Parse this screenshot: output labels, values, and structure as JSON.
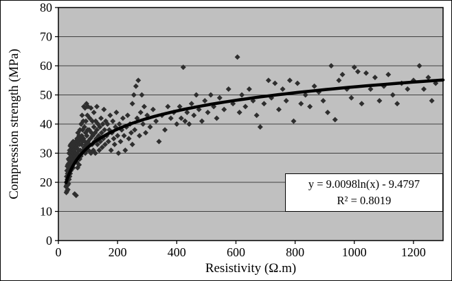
{
  "chart_data": {
    "type": "scatter",
    "title": "",
    "xlabel": "Resistivity (Ω.m)",
    "ylabel": "Compression strength (MPa)",
    "xlim": [
      0,
      1300
    ],
    "ylim": [
      0,
      80
    ],
    "x_ticks": [
      0,
      200,
      400,
      600,
      800,
      1000,
      1200
    ],
    "y_ticks": [
      0,
      10,
      20,
      30,
      40,
      50,
      60,
      70,
      80
    ],
    "grid": "horizontal",
    "plot_bg": "#c0c0c0",
    "grid_color": "#3f3f3f",
    "marker": {
      "shape": "diamond",
      "color": "#2e2e2e",
      "size": 8
    },
    "annotation": {
      "line1": "y = 9.0098ln(x) - 9.4797",
      "line2": "R² = 0.8019"
    },
    "trendline": {
      "type": "logarithmic",
      "a": 9.0098,
      "b": -9.4797,
      "color": "#000000",
      "width": 4.5,
      "x_start": 26,
      "x_end": 1300
    },
    "points": [
      [
        26,
        18.5
      ],
      [
        27,
        20
      ],
      [
        27,
        16.5
      ],
      [
        28,
        22
      ],
      [
        28,
        19
      ],
      [
        29,
        17
      ],
      [
        29,
        24
      ],
      [
        30,
        21
      ],
      [
        30,
        25.5
      ],
      [
        31,
        19
      ],
      [
        31,
        23
      ],
      [
        32,
        17.5
      ],
      [
        32,
        26
      ],
      [
        33,
        21
      ],
      [
        33,
        24.5
      ],
      [
        34,
        19.5
      ],
      [
        34,
        28
      ],
      [
        35,
        23
      ],
      [
        35,
        26.5
      ],
      [
        36,
        21
      ],
      [
        36,
        30
      ],
      [
        37,
        24
      ],
      [
        37,
        27.5
      ],
      [
        38,
        22
      ],
      [
        38,
        31
      ],
      [
        39,
        25
      ],
      [
        39,
        28.5
      ],
      [
        40,
        23
      ],
      [
        40,
        32.5
      ],
      [
        41,
        26
      ],
      [
        41,
        29.5
      ],
      [
        42,
        24
      ],
      [
        42,
        33
      ],
      [
        43,
        27
      ],
      [
        43,
        30.5
      ],
      [
        44,
        25
      ],
      [
        45,
        28
      ],
      [
        45,
        31.5
      ],
      [
        46,
        26
      ],
      [
        46,
        33.5
      ],
      [
        47,
        29
      ],
      [
        48,
        27
      ],
      [
        48,
        32
      ],
      [
        49,
        30
      ],
      [
        50,
        25
      ],
      [
        50,
        34
      ],
      [
        51,
        28
      ],
      [
        52,
        31
      ],
      [
        53,
        26.5
      ],
      [
        54,
        33
      ],
      [
        55,
        16
      ],
      [
        55,
        29
      ],
      [
        56,
        31.5
      ],
      [
        57,
        27
      ],
      [
        58,
        34
      ],
      [
        59,
        30
      ],
      [
        60,
        15.5
      ],
      [
        60,
        28
      ],
      [
        61,
        32
      ],
      [
        62,
        27
      ],
      [
        63,
        35
      ],
      [
        64,
        30
      ],
      [
        65,
        25
      ],
      [
        65,
        33
      ],
      [
        66,
        37
      ],
      [
        67,
        29
      ],
      [
        68,
        34
      ],
      [
        69,
        31
      ],
      [
        70,
        26
      ],
      [
        70,
        36
      ],
      [
        71,
        33
      ],
      [
        72,
        28
      ],
      [
        73,
        38
      ],
      [
        74,
        31
      ],
      [
        75,
        35
      ],
      [
        76,
        29
      ],
      [
        77,
        40
      ],
      [
        78,
        33
      ],
      [
        79,
        36
      ],
      [
        80,
        30
      ],
      [
        80,
        43
      ],
      [
        81,
        34
      ],
      [
        82,
        38
      ],
      [
        83,
        31
      ],
      [
        84,
        41
      ],
      [
        85,
        35
      ],
      [
        86,
        46
      ],
      [
        87,
        32
      ],
      [
        88,
        39
      ],
      [
        89,
        34
      ],
      [
        90,
        45.5
      ],
      [
        91,
        30
      ],
      [
        92,
        37
      ],
      [
        93,
        41
      ],
      [
        94,
        33
      ],
      [
        95,
        47
      ],
      [
        96,
        36
      ],
      [
        97,
        31
      ],
      [
        98,
        43
      ],
      [
        99,
        38
      ],
      [
        100,
        34
      ],
      [
        100,
        46
      ],
      [
        102,
        31
      ],
      [
        104,
        38
      ],
      [
        105,
        33
      ],
      [
        106,
        42
      ],
      [
        108,
        35
      ],
      [
        110,
        30
      ],
      [
        110,
        45.5
      ],
      [
        112,
        37
      ],
      [
        114,
        33
      ],
      [
        115,
        41
      ],
      [
        116,
        36
      ],
      [
        118,
        31
      ],
      [
        120,
        39
      ],
      [
        120,
        44
      ],
      [
        122,
        34
      ],
      [
        124,
        37
      ],
      [
        125,
        30
      ],
      [
        126,
        41
      ],
      [
        128,
        35
      ],
      [
        130,
        38
      ],
      [
        130,
        46
      ],
      [
        132,
        33
      ],
      [
        134,
        40
      ],
      [
        136,
        36
      ],
      [
        138,
        31
      ],
      [
        140,
        39
      ],
      [
        142,
        34
      ],
      [
        144,
        42
      ],
      [
        146,
        37
      ],
      [
        148,
        32
      ],
      [
        150,
        40
      ],
      [
        152,
        35
      ],
      [
        154,
        45
      ],
      [
        156,
        38
      ],
      [
        158,
        33
      ],
      [
        160,
        41
      ],
      [
        163,
        36
      ],
      [
        166,
        40
      ],
      [
        169,
        34
      ],
      [
        172,
        38
      ],
      [
        175,
        43
      ],
      [
        178,
        31
      ],
      [
        181,
        37
      ],
      [
        184,
        41
      ],
      [
        187,
        35
      ],
      [
        190,
        33
      ],
      [
        193,
        39
      ],
      [
        196,
        44
      ],
      [
        200,
        36
      ],
      [
        203,
        30
      ],
      [
        206,
        40
      ],
      [
        210,
        34
      ],
      [
        214,
        38
      ],
      [
        218,
        42
      ],
      [
        222,
        36
      ],
      [
        226,
        31
      ],
      [
        230,
        39
      ],
      [
        234,
        43
      ],
      [
        238,
        35
      ],
      [
        242,
        40
      ],
      [
        246,
        37
      ],
      [
        250,
        47
      ],
      [
        250,
        33
      ],
      [
        255,
        50
      ],
      [
        258,
        38
      ],
      [
        262,
        53
      ],
      [
        266,
        42
      ],
      [
        270,
        55
      ],
      [
        274,
        36
      ],
      [
        278,
        44
      ],
      [
        282,
        50
      ],
      [
        286,
        40
      ],
      [
        290,
        46
      ],
      [
        295,
        37
      ],
      [
        300,
        43
      ],
      [
        310,
        39
      ],
      [
        320,
        45
      ],
      [
        330,
        41
      ],
      [
        340,
        34
      ],
      [
        350,
        43
      ],
      [
        360,
        38
      ],
      [
        370,
        46
      ],
      [
        380,
        42
      ],
      [
        390,
        44
      ],
      [
        400,
        40
      ],
      [
        410,
        46
      ],
      [
        415,
        42
      ],
      [
        422,
        59.5
      ],
      [
        428,
        41
      ],
      [
        435,
        44
      ],
      [
        442,
        40
      ],
      [
        450,
        47
      ],
      [
        458,
        43
      ],
      [
        466,
        50
      ],
      [
        475,
        45
      ],
      [
        485,
        41
      ],
      [
        495,
        48
      ],
      [
        505,
        44
      ],
      [
        515,
        50
      ],
      [
        525,
        46
      ],
      [
        535,
        42
      ],
      [
        545,
        49
      ],
      [
        560,
        45
      ],
      [
        575,
        52
      ],
      [
        590,
        47
      ],
      [
        605,
        63
      ],
      [
        612,
        44
      ],
      [
        620,
        50
      ],
      [
        632,
        46
      ],
      [
        645,
        52
      ],
      [
        658,
        48
      ],
      [
        670,
        43
      ],
      [
        682,
        39
      ],
      [
        695,
        47
      ],
      [
        710,
        55
      ],
      [
        720,
        49
      ],
      [
        732,
        54
      ],
      [
        745,
        45
      ],
      [
        758,
        52
      ],
      [
        770,
        48
      ],
      [
        782,
        55
      ],
      [
        795,
        41
      ],
      [
        808,
        54
      ],
      [
        820,
        47
      ],
      [
        835,
        50
      ],
      [
        850,
        46
      ],
      [
        865,
        53
      ],
      [
        880,
        51
      ],
      [
        895,
        48
      ],
      [
        910,
        44
      ],
      [
        922,
        60
      ],
      [
        935,
        41.5
      ],
      [
        948,
        55
      ],
      [
        960,
        57
      ],
      [
        975,
        52
      ],
      [
        990,
        49
      ],
      [
        1000,
        59.5
      ],
      [
        1012,
        58
      ],
      [
        1025,
        47
      ],
      [
        1040,
        57.5
      ],
      [
        1055,
        52
      ],
      [
        1070,
        56
      ],
      [
        1085,
        48
      ],
      [
        1100,
        53
      ],
      [
        1115,
        57
      ],
      [
        1130,
        50
      ],
      [
        1145,
        47
      ],
      [
        1160,
        54
      ],
      [
        1180,
        52
      ],
      [
        1200,
        55
      ],
      [
        1220,
        60
      ],
      [
        1235,
        52
      ],
      [
        1250,
        56
      ],
      [
        1262,
        48
      ],
      [
        1275,
        54
      ]
    ]
  }
}
